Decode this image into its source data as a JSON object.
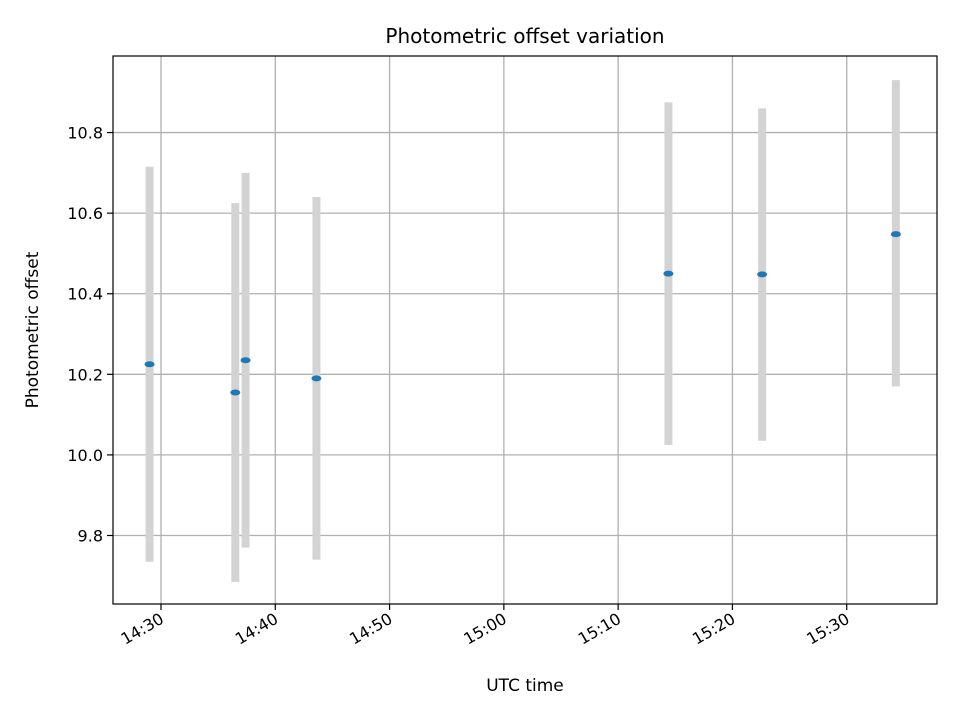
{
  "chart_data": {
    "type": "scatter",
    "title": "Photometric offset variation",
    "xlabel": "UTC time",
    "ylabel": "Photometric offset",
    "grid": true,
    "x_ticks": [
      "14:30",
      "14:40",
      "14:50",
      "15:00",
      "15:10",
      "15:20",
      "15:30"
    ],
    "x_tick_minutes": [
      870,
      880,
      890,
      900,
      910,
      920,
      930
    ],
    "xlim_minutes": [
      865.8,
      937.9
    ],
    "y_ticks": [
      9.8,
      10.0,
      10.2,
      10.4,
      10.6,
      10.8
    ],
    "ylim": [
      9.63,
      10.99
    ],
    "series": [
      {
        "marker_color": "#1f77b4",
        "errorbar_color": "#d3d3d3",
        "points": [
          {
            "time": "14:29",
            "y": 10.225,
            "yerr_low": 9.735,
            "yerr_high": 10.715
          },
          {
            "time": "14:36.5",
            "y": 10.155,
            "yerr_low": 9.685,
            "yerr_high": 10.625
          },
          {
            "time": "14:37.4",
            "y": 10.235,
            "yerr_low": 9.77,
            "yerr_high": 10.7
          },
          {
            "time": "14:43.6",
            "y": 10.19,
            "yerr_low": 9.74,
            "yerr_high": 10.64
          },
          {
            "time": "15:14.4",
            "y": 10.45,
            "yerr_low": 10.025,
            "yerr_high": 10.875
          },
          {
            "time": "15:22.6",
            "y": 10.448,
            "yerr_low": 10.035,
            "yerr_high": 10.86
          },
          {
            "time": "15:34.3",
            "y": 10.548,
            "yerr_low": 10.17,
            "yerr_high": 10.93
          }
        ]
      }
    ]
  }
}
